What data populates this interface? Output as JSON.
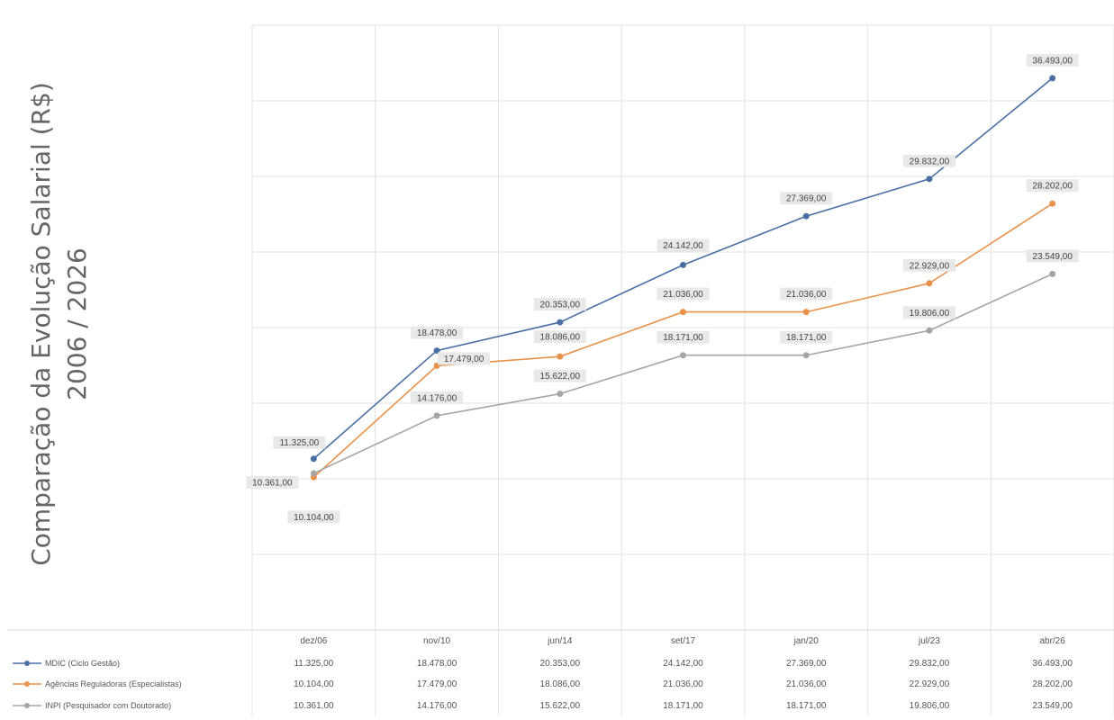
{
  "chart_data": {
    "type": "line",
    "ylabel_lines": [
      "Comparação da Evolução Salarial (R$)",
      "2006 / 2026"
    ],
    "categories": [
      "dez/06",
      "nov/10",
      "jun/14",
      "set/17",
      "jan/20",
      "jul/23",
      "abr/26"
    ],
    "ylim": [
      0,
      40000
    ],
    "grid": true,
    "legend": "bottom-table",
    "series": [
      {
        "name": "MDIC (Ciclo Gestão)",
        "color": "#4a6fa5",
        "values": [
          11325,
          18478,
          20353,
          24142,
          27369,
          29832,
          36493
        ],
        "labels": [
          "11.325,00",
          "18.478,00",
          "20.353,00",
          "24.142,00",
          "27.369,00",
          "29.832,00",
          "36.493,00"
        ],
        "table": [
          "11.325,00",
          "18.478,00",
          "20.353,00",
          "24.142,00",
          "27.369,00",
          "29.832,00",
          "36.493,00"
        ]
      },
      {
        "name": "Agências Reguladoras (Especialistas)",
        "color": "#e8914a",
        "values": [
          10104,
          17479,
          18086,
          21036,
          21036,
          22929,
          28202
        ],
        "labels": [
          "10.104,00",
          "17.479,00",
          "18.086,00",
          "21.036,00",
          "21.036,00",
          "22.929,00",
          "28.202,00"
        ],
        "table": [
          "10.104,00",
          "17.479,00",
          "18.086,00",
          "21.036,00",
          "21.036,00",
          "22.929,00",
          "28.202,00"
        ]
      },
      {
        "name": "INPI (Pesquisador com Doutorado)",
        "color": "#a5a5a5",
        "values": [
          10361,
          14176,
          15622,
          18171,
          18171,
          19806,
          23549
        ],
        "labels": [
          "10.361,00",
          "14.176,00",
          "15.622,00",
          "18.171,00",
          "18.171,00",
          "19.806,00",
          "23.549,00"
        ],
        "table": [
          "10.361,00",
          "14.176,00",
          "15.622,00",
          "18.171,00",
          "18.171,00",
          "19.806,00",
          "23.549,00"
        ]
      }
    ]
  }
}
